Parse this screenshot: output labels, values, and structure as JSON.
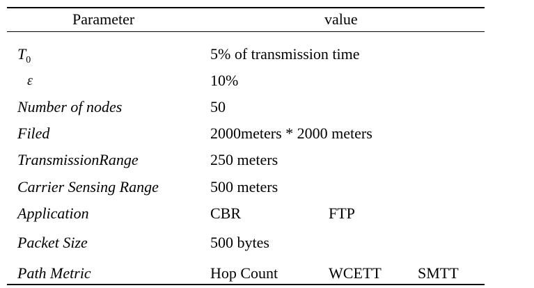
{
  "table": {
    "headers": {
      "parameter": "Parameter",
      "value": "value"
    },
    "rows": [
      {
        "param_main": "T",
        "param_sub": "0",
        "values": [
          "5% of transmission time"
        ]
      },
      {
        "param_main": "ε",
        "values": [
          "10%"
        ]
      },
      {
        "param_main": "Number of nodes",
        "values": [
          "50"
        ]
      },
      {
        "param_main": "Filed",
        "values": [
          "2000meters * 2000 meters"
        ]
      },
      {
        "param_main": "TransmissionRange",
        "values": [
          "250 meters"
        ]
      },
      {
        "param_main": "Carrier Sensing Range",
        "values": [
          "500 meters"
        ]
      },
      {
        "param_main": "Application",
        "values": [
          "CBR",
          "FTP"
        ]
      },
      {
        "param_main": "Packet Size",
        "values": [
          "500 bytes"
        ]
      },
      {
        "param_main": "Path Metric",
        "values": [
          "Hop Count",
          "WCETT",
          "SMTT"
        ]
      }
    ]
  }
}
